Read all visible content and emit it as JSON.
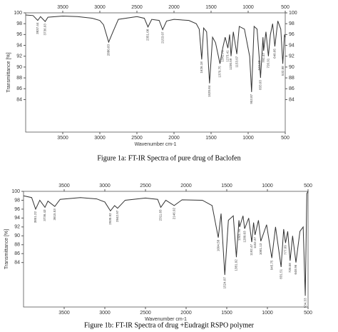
{
  "chart_data": [
    {
      "type": "line",
      "caption": "Figure 1a: FT-IR Spectra of pure drug of Baclofen",
      "xlabel": "Wavenumber cm-1",
      "ylabel": "Transmittance [%]",
      "color": "#333333",
      "xlim": [
        4000,
        500
      ],
      "xticks": [
        3500,
        3000,
        2500,
        2000,
        1500,
        1000,
        500
      ],
      "ylim": [
        78,
        100
      ],
      "yticks": [
        100,
        98,
        96,
        94,
        92,
        90,
        88,
        86,
        84
      ],
      "right_yticks": true,
      "x": [
        4000,
        3900,
        3837.44,
        3800,
        3736.93,
        3700,
        3500,
        3300,
        3100,
        3000,
        2950,
        2880.83,
        2820,
        2750,
        2500,
        2400,
        2351.08,
        2300,
        2200,
        2153.07,
        2100,
        2000,
        1800,
        1700,
        1660,
        1626.18,
        1600,
        1560,
        1520.84,
        1480,
        1440,
        1379.75,
        1342.79,
        1310,
        1273.41,
        1250,
        1230.59,
        1200,
        1153.07,
        1120,
        1050,
        980,
        953.87,
        920,
        880,
        849.93,
        833.03,
        800,
        791.47,
        760,
        726.91,
        700,
        670,
        640.05,
        600,
        560,
        532.88,
        510,
        500
      ],
      "values": [
        99.6,
        99.5,
        98.6,
        99.3,
        98.4,
        99.2,
        99.4,
        99.3,
        99.0,
        98.6,
        97.8,
        94.6,
        96.6,
        98.8,
        99.3,
        99.0,
        97.4,
        98.8,
        98.6,
        96.9,
        98.5,
        98.8,
        98.6,
        98.0,
        97.0,
        91.4,
        97.2,
        96.5,
        87.0,
        95.5,
        94.5,
        90.6,
        93.5,
        95.5,
        93.5,
        96.0,
        92.0,
        96.5,
        92.4,
        97.5,
        97.0,
        92.0,
        85.4,
        97.5,
        97.0,
        91.6,
        88.0,
        95.5,
        93.0,
        96.5,
        92.0,
        96.0,
        98.0,
        93.8,
        98.5,
        97.0,
        90.6,
        96.0,
        95.5
      ],
      "peaks": [
        3837.44,
        3736.93,
        2880.83,
        2351.08,
        2153.07,
        1626.18,
        1520.84,
        1379.75,
        1342.79,
        1273.41,
        1230.59,
        1153.07,
        953.87,
        849.93,
        833.03,
        791.47,
        726.91,
        640.05,
        532.88
      ]
    },
    {
      "type": "line",
      "caption": "Figure 1b: FT-IR Spectra of  drug +Eudragit RSPO polymer",
      "xlabel": "Wavenumber cm-1",
      "ylabel": "Transmittance [%]",
      "color": "#333333",
      "xlim": [
        4000,
        500
      ],
      "xticks": [
        3500,
        3000,
        2500,
        2000,
        1500,
        1000,
        500
      ],
      "ylim": [
        74,
        100
      ],
      "yticks": [
        100,
        98,
        96,
        94,
        92,
        90,
        88,
        86,
        84
      ],
      "right_yticks": false,
      "x": [
        4000,
        3900,
        3851.22,
        3800,
        3736.43,
        3700,
        3615.53,
        3550,
        3300,
        3100,
        3000,
        2930.92,
        2880,
        2842.97,
        2750,
        2500,
        2350,
        2311.83,
        2250,
        2146.92,
        2050,
        1800,
        1680,
        1604.58,
        1570,
        1524.07,
        1480,
        1420,
        1381.92,
        1350,
        1341.76,
        1300,
        1280.03,
        1230,
        1192.47,
        1170,
        1152.37,
        1110,
        1081.13,
        1010,
        945.75,
        900,
        831.51,
        800,
        777.09,
        750,
        720.58,
        690,
        648.96,
        600,
        560,
        534.33,
        515,
        500
      ],
      "values": [
        99.0,
        98.6,
        96.0,
        98.0,
        96.4,
        97.8,
        96.6,
        98.2,
        98.6,
        98.3,
        97.6,
        95.6,
        96.8,
        96.2,
        98.0,
        98.5,
        98.2,
        96.4,
        98.0,
        96.8,
        98.1,
        98.0,
        96.8,
        89.6,
        95.0,
        81.2,
        93.5,
        94.5,
        85.2,
        93.5,
        92.0,
        94.5,
        91.6,
        94.0,
        88.6,
        93.0,
        90.2,
        93.5,
        88.8,
        92.5,
        85.0,
        92.0,
        83.0,
        91.5,
        88.4,
        91.0,
        84.4,
        90.0,
        84.0,
        91.0,
        92.0,
        76.5,
        99.5,
        100
      ],
      "peaks": [
        3851.22,
        3736.43,
        3615.53,
        2930.92,
        2842.97,
        2311.83,
        2146.92,
        1604.58,
        1524.07,
        1381.92,
        1341.76,
        1280.03,
        1192.47,
        1152.37,
        1081.13,
        945.75,
        831.51,
        777.09,
        720.58,
        648.96,
        534.33
      ]
    }
  ]
}
